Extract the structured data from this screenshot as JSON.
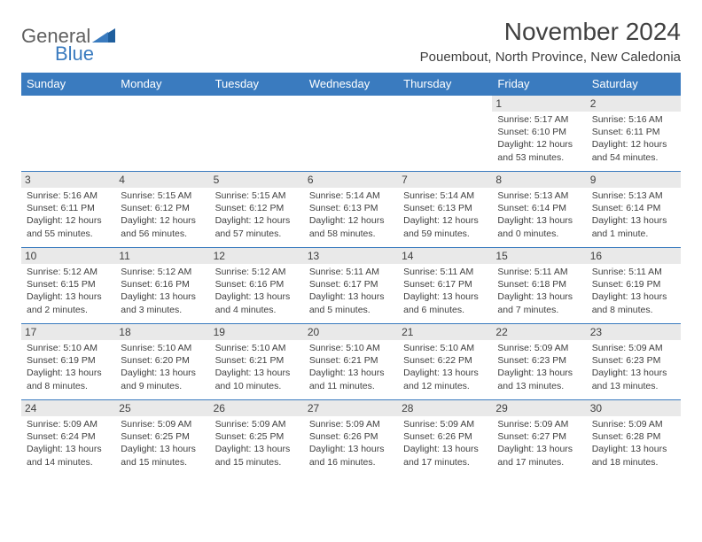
{
  "logo": {
    "word1": "General",
    "word2": "Blue"
  },
  "header": {
    "title": "November 2024",
    "location": "Pouembout, North Province, New Caledonia"
  },
  "colors": {
    "accent": "#3a7bbf",
    "header_bg": "#3a7bbf",
    "header_text": "#ffffff",
    "daynum_bg": "#e9e9e9",
    "text": "#404040",
    "logo_gray": "#606060"
  },
  "days_of_week": [
    "Sunday",
    "Monday",
    "Tuesday",
    "Wednesday",
    "Thursday",
    "Friday",
    "Saturday"
  ],
  "weeks": [
    [
      null,
      null,
      null,
      null,
      null,
      {
        "num": "1",
        "sunrise": "Sunrise: 5:17 AM",
        "sunset": "Sunset: 6:10 PM",
        "daylight": "Daylight: 12 hours and 53 minutes."
      },
      {
        "num": "2",
        "sunrise": "Sunrise: 5:16 AM",
        "sunset": "Sunset: 6:11 PM",
        "daylight": "Daylight: 12 hours and 54 minutes."
      }
    ],
    [
      {
        "num": "3",
        "sunrise": "Sunrise: 5:16 AM",
        "sunset": "Sunset: 6:11 PM",
        "daylight": "Daylight: 12 hours and 55 minutes."
      },
      {
        "num": "4",
        "sunrise": "Sunrise: 5:15 AM",
        "sunset": "Sunset: 6:12 PM",
        "daylight": "Daylight: 12 hours and 56 minutes."
      },
      {
        "num": "5",
        "sunrise": "Sunrise: 5:15 AM",
        "sunset": "Sunset: 6:12 PM",
        "daylight": "Daylight: 12 hours and 57 minutes."
      },
      {
        "num": "6",
        "sunrise": "Sunrise: 5:14 AM",
        "sunset": "Sunset: 6:13 PM",
        "daylight": "Daylight: 12 hours and 58 minutes."
      },
      {
        "num": "7",
        "sunrise": "Sunrise: 5:14 AM",
        "sunset": "Sunset: 6:13 PM",
        "daylight": "Daylight: 12 hours and 59 minutes."
      },
      {
        "num": "8",
        "sunrise": "Sunrise: 5:13 AM",
        "sunset": "Sunset: 6:14 PM",
        "daylight": "Daylight: 13 hours and 0 minutes."
      },
      {
        "num": "9",
        "sunrise": "Sunrise: 5:13 AM",
        "sunset": "Sunset: 6:14 PM",
        "daylight": "Daylight: 13 hours and 1 minute."
      }
    ],
    [
      {
        "num": "10",
        "sunrise": "Sunrise: 5:12 AM",
        "sunset": "Sunset: 6:15 PM",
        "daylight": "Daylight: 13 hours and 2 minutes."
      },
      {
        "num": "11",
        "sunrise": "Sunrise: 5:12 AM",
        "sunset": "Sunset: 6:16 PM",
        "daylight": "Daylight: 13 hours and 3 minutes."
      },
      {
        "num": "12",
        "sunrise": "Sunrise: 5:12 AM",
        "sunset": "Sunset: 6:16 PM",
        "daylight": "Daylight: 13 hours and 4 minutes."
      },
      {
        "num": "13",
        "sunrise": "Sunrise: 5:11 AM",
        "sunset": "Sunset: 6:17 PM",
        "daylight": "Daylight: 13 hours and 5 minutes."
      },
      {
        "num": "14",
        "sunrise": "Sunrise: 5:11 AM",
        "sunset": "Sunset: 6:17 PM",
        "daylight": "Daylight: 13 hours and 6 minutes."
      },
      {
        "num": "15",
        "sunrise": "Sunrise: 5:11 AM",
        "sunset": "Sunset: 6:18 PM",
        "daylight": "Daylight: 13 hours and 7 minutes."
      },
      {
        "num": "16",
        "sunrise": "Sunrise: 5:11 AM",
        "sunset": "Sunset: 6:19 PM",
        "daylight": "Daylight: 13 hours and 8 minutes."
      }
    ],
    [
      {
        "num": "17",
        "sunrise": "Sunrise: 5:10 AM",
        "sunset": "Sunset: 6:19 PM",
        "daylight": "Daylight: 13 hours and 8 minutes."
      },
      {
        "num": "18",
        "sunrise": "Sunrise: 5:10 AM",
        "sunset": "Sunset: 6:20 PM",
        "daylight": "Daylight: 13 hours and 9 minutes."
      },
      {
        "num": "19",
        "sunrise": "Sunrise: 5:10 AM",
        "sunset": "Sunset: 6:21 PM",
        "daylight": "Daylight: 13 hours and 10 minutes."
      },
      {
        "num": "20",
        "sunrise": "Sunrise: 5:10 AM",
        "sunset": "Sunset: 6:21 PM",
        "daylight": "Daylight: 13 hours and 11 minutes."
      },
      {
        "num": "21",
        "sunrise": "Sunrise: 5:10 AM",
        "sunset": "Sunset: 6:22 PM",
        "daylight": "Daylight: 13 hours and 12 minutes."
      },
      {
        "num": "22",
        "sunrise": "Sunrise: 5:09 AM",
        "sunset": "Sunset: 6:23 PM",
        "daylight": "Daylight: 13 hours and 13 minutes."
      },
      {
        "num": "23",
        "sunrise": "Sunrise: 5:09 AM",
        "sunset": "Sunset: 6:23 PM",
        "daylight": "Daylight: 13 hours and 13 minutes."
      }
    ],
    [
      {
        "num": "24",
        "sunrise": "Sunrise: 5:09 AM",
        "sunset": "Sunset: 6:24 PM",
        "daylight": "Daylight: 13 hours and 14 minutes."
      },
      {
        "num": "25",
        "sunrise": "Sunrise: 5:09 AM",
        "sunset": "Sunset: 6:25 PM",
        "daylight": "Daylight: 13 hours and 15 minutes."
      },
      {
        "num": "26",
        "sunrise": "Sunrise: 5:09 AM",
        "sunset": "Sunset: 6:25 PM",
        "daylight": "Daylight: 13 hours and 15 minutes."
      },
      {
        "num": "27",
        "sunrise": "Sunrise: 5:09 AM",
        "sunset": "Sunset: 6:26 PM",
        "daylight": "Daylight: 13 hours and 16 minutes."
      },
      {
        "num": "28",
        "sunrise": "Sunrise: 5:09 AM",
        "sunset": "Sunset: 6:26 PM",
        "daylight": "Daylight: 13 hours and 17 minutes."
      },
      {
        "num": "29",
        "sunrise": "Sunrise: 5:09 AM",
        "sunset": "Sunset: 6:27 PM",
        "daylight": "Daylight: 13 hours and 17 minutes."
      },
      {
        "num": "30",
        "sunrise": "Sunrise: 5:09 AM",
        "sunset": "Sunset: 6:28 PM",
        "daylight": "Daylight: 13 hours and 18 minutes."
      }
    ]
  ]
}
